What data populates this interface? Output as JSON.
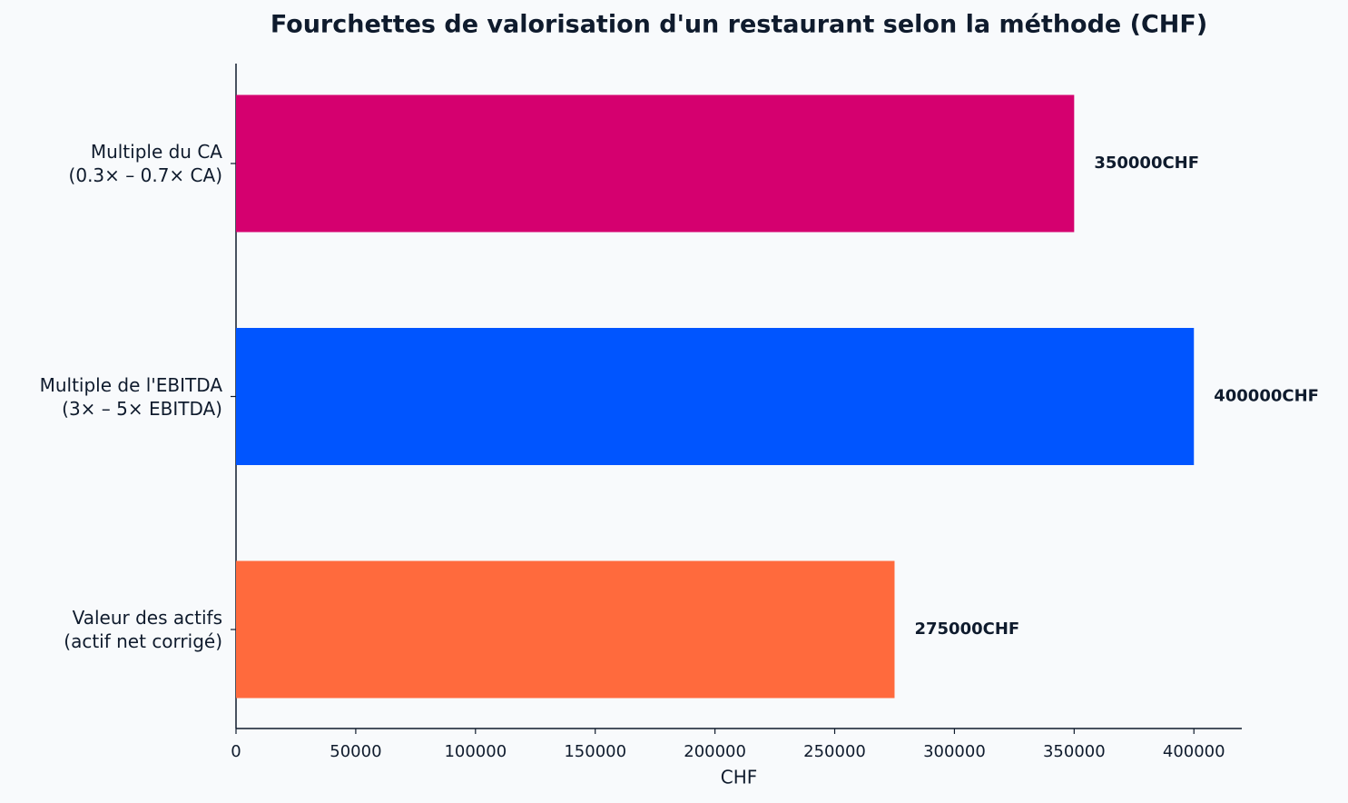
{
  "chart_data": {
    "type": "hbar",
    "title": "Fourchettes de valorisation d'un restaurant selon la méthode (CHF)",
    "xlabel": "CHF",
    "categories": [
      "Multiple du CA\n(0.3× – 0.7× CA)",
      "Multiple de l'EBITDA\n(3× – 5× EBITDA)",
      "Valeur des actifs\n(actif net corrigé)"
    ],
    "values": [
      350000,
      400000,
      275000
    ],
    "value_labels": [
      "350000CHF",
      "400000CHF",
      "275000CHF"
    ],
    "colors": [
      "#d5006f",
      "#0055ff",
      "#ff6a3d"
    ],
    "xlim": [
      0,
      420000
    ],
    "xticks": [
      0,
      50000,
      100000,
      150000,
      200000,
      250000,
      300000,
      350000,
      400000
    ]
  }
}
